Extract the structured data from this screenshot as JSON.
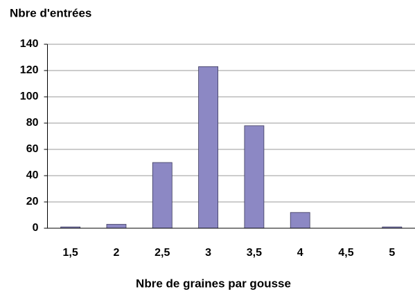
{
  "chart_data": {
    "type": "bar",
    "ylabel": "Nbre d'entrées",
    "xlabel": "Nbre de graines par gousse",
    "categories": [
      "1,5",
      "2",
      "2,5",
      "3",
      "3,5",
      "4",
      "4,5",
      "5"
    ],
    "values": [
      1,
      3,
      50,
      123,
      78,
      12,
      0,
      1
    ],
    "color": "#8c88c4",
    "ylim": [
      0,
      140
    ],
    "yticks": [
      0,
      20,
      40,
      60,
      80,
      100,
      120,
      140
    ],
    "grid": true
  }
}
